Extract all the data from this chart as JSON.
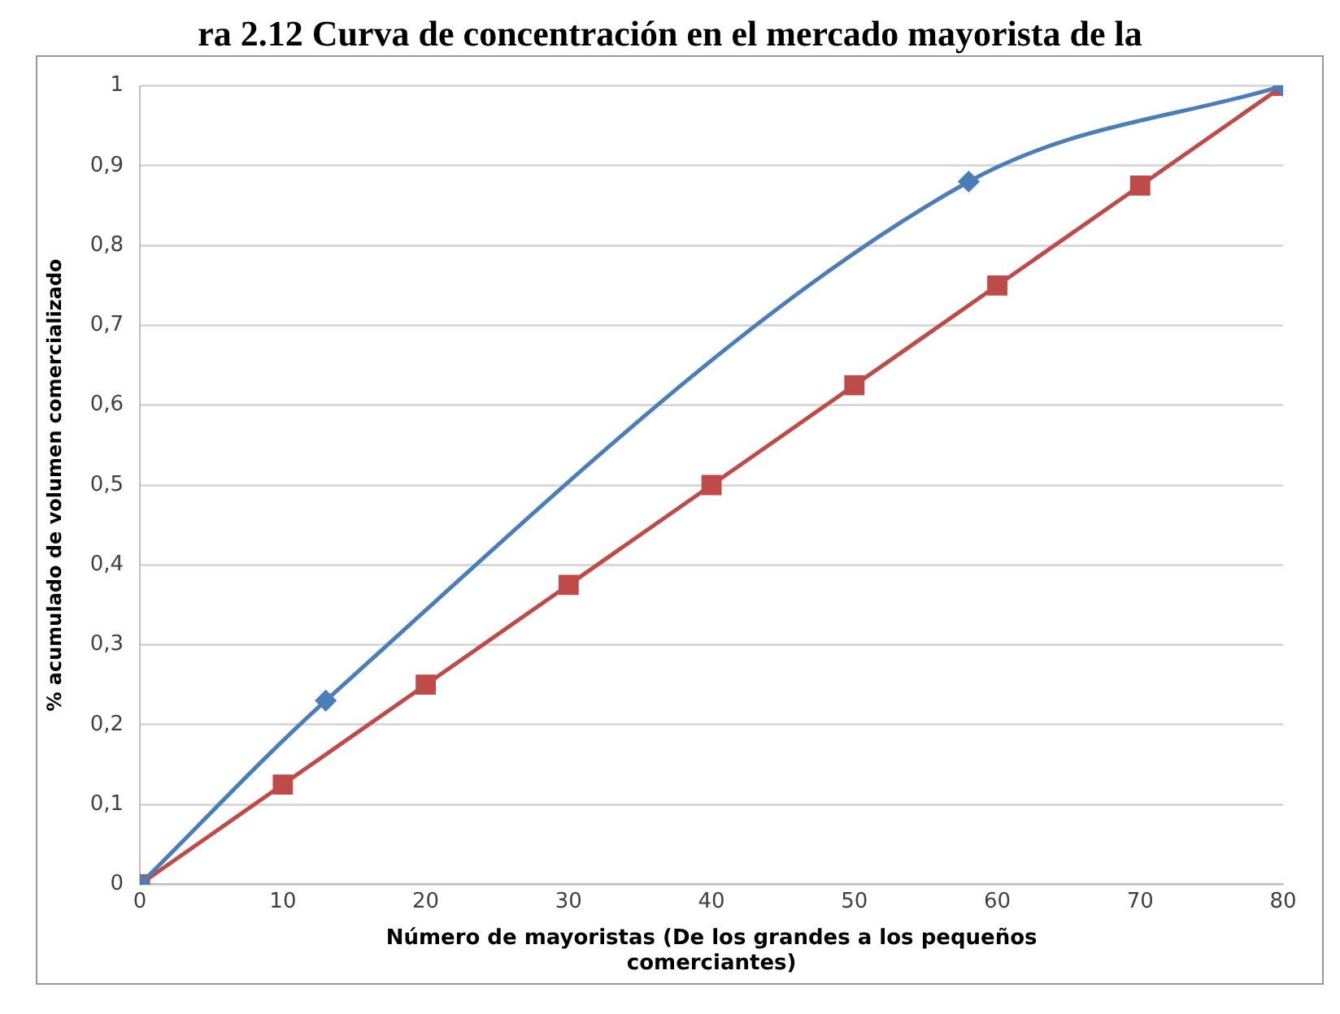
{
  "chart_data": {
    "type": "line",
    "title": "ra 2.12 Curva de concentración en el mercado mayorista de la",
    "xlabel": "Número de mayoristas (De los grandes a los pequeños comerciantes)",
    "ylabel": "% acumulado de volumen comercializado",
    "series": [
      {
        "color": "#4a7ebb",
        "marker": "diamond",
        "x": [
          0,
          13,
          58,
          80
        ],
        "values": [
          0,
          0.23,
          0.88,
          1
        ]
      },
      {
        "color": "#be4b48",
        "marker": "square",
        "x": [
          0,
          10,
          20,
          30,
          40,
          50,
          60,
          70,
          80
        ],
        "values": [
          0,
          0.125,
          0.25,
          0.375,
          0.5,
          0.625,
          0.75,
          0.875,
          1
        ]
      }
    ],
    "xlim": [
      0,
      80
    ],
    "xticks": [
      0,
      10,
      20,
      30,
      40,
      50,
      60,
      70,
      80
    ],
    "ylim": [
      0,
      1
    ],
    "yticks": [
      0,
      {
        "value": 0.1,
        "label": "0,1"
      },
      {
        "value": 0.2,
        "label": "0,2"
      },
      {
        "value": 0.3,
        "label": "0,3"
      },
      {
        "value": 0.4,
        "label": "0,4"
      },
      {
        "value": 0.5,
        "label": "0,5"
      },
      {
        "value": 0.6,
        "label": "0,6"
      },
      {
        "value": 0.7,
        "label": "0,7"
      },
      {
        "value": 0.8,
        "label": "0,8"
      },
      {
        "value": 0.9,
        "label": "0,9"
      },
      1
    ],
    "grid": "y",
    "line_style": "solid"
  }
}
